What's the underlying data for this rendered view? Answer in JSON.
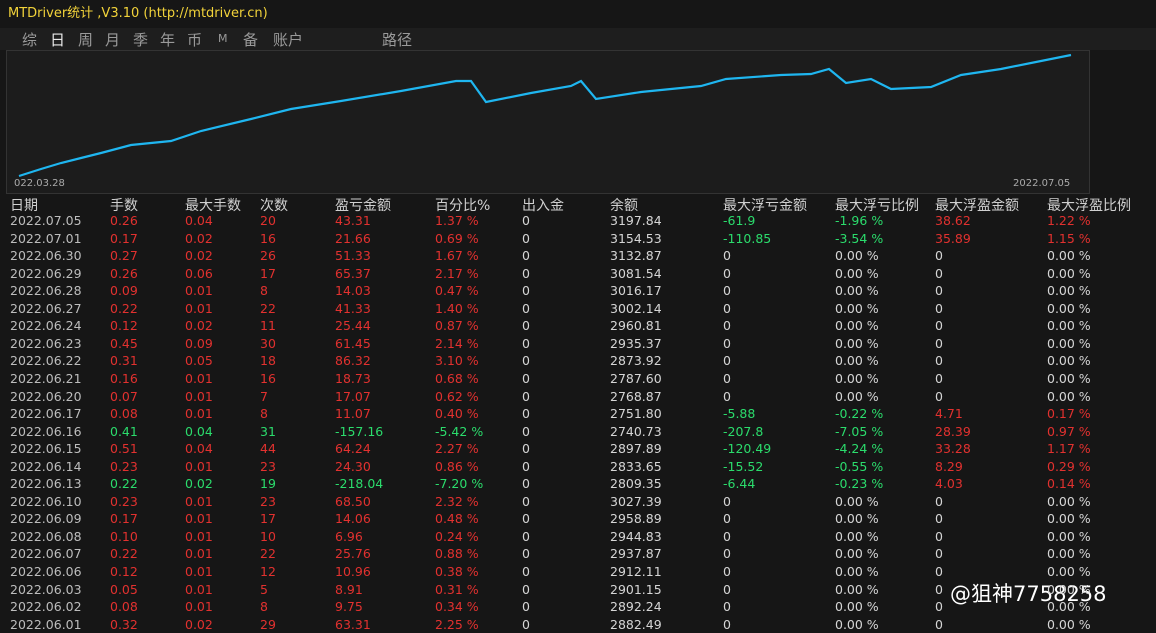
{
  "header": {
    "title": "MTDriver统计 ,V3.10 (http://mtdriver.cn)",
    "tabs": [
      "综",
      "日",
      "周",
      "月",
      "季",
      "年",
      "币",
      "M",
      "备",
      "账户",
      "路径"
    ]
  },
  "chart": {
    "start_label": "022.03.28",
    "end_label": "2022.07.05"
  },
  "table": {
    "columns": [
      "日期",
      "手数",
      "最大手数",
      "次数",
      "盈亏金额",
      "百分比%",
      "出入金",
      "余额",
      "最大浮亏金额",
      "最大浮亏比例",
      "最大浮盈金额",
      "最大浮盈比例"
    ],
    "rows": [
      [
        "2022.07.05",
        "0.26",
        "0.04",
        "20",
        "43.31",
        "1.37 %",
        "0",
        "3197.84",
        "-61.9",
        "-1.96 %",
        "38.62",
        "1.22 %"
      ],
      [
        "2022.07.01",
        "0.17",
        "0.02",
        "16",
        "21.66",
        "0.69 %",
        "0",
        "3154.53",
        "-110.85",
        "-3.54 %",
        "35.89",
        "1.15 %"
      ],
      [
        "2022.06.30",
        "0.27",
        "0.02",
        "26",
        "51.33",
        "1.67 %",
        "0",
        "3132.87",
        "0",
        "0.00 %",
        "0",
        "0.00 %"
      ],
      [
        "2022.06.29",
        "0.26",
        "0.06",
        "17",
        "65.37",
        "2.17 %",
        "0",
        "3081.54",
        "0",
        "0.00 %",
        "0",
        "0.00 %"
      ],
      [
        "2022.06.28",
        "0.09",
        "0.01",
        "8",
        "14.03",
        "0.47 %",
        "0",
        "3016.17",
        "0",
        "0.00 %",
        "0",
        "0.00 %"
      ],
      [
        "2022.06.27",
        "0.22",
        "0.01",
        "22",
        "41.33",
        "1.40 %",
        "0",
        "3002.14",
        "0",
        "0.00 %",
        "0",
        "0.00 %"
      ],
      [
        "2022.06.24",
        "0.12",
        "0.02",
        "11",
        "25.44",
        "0.87 %",
        "0",
        "2960.81",
        "0",
        "0.00 %",
        "0",
        "0.00 %"
      ],
      [
        "2022.06.23",
        "0.45",
        "0.09",
        "30",
        "61.45",
        "2.14 %",
        "0",
        "2935.37",
        "0",
        "0.00 %",
        "0",
        "0.00 %"
      ],
      [
        "2022.06.22",
        "0.31",
        "0.05",
        "18",
        "86.32",
        "3.10 %",
        "0",
        "2873.92",
        "0",
        "0.00 %",
        "0",
        "0.00 %"
      ],
      [
        "2022.06.21",
        "0.16",
        "0.01",
        "16",
        "18.73",
        "0.68 %",
        "0",
        "2787.60",
        "0",
        "0.00 %",
        "0",
        "0.00 %"
      ],
      [
        "2022.06.20",
        "0.07",
        "0.01",
        "7",
        "17.07",
        "0.62 %",
        "0",
        "2768.87",
        "0",
        "0.00 %",
        "0",
        "0.00 %"
      ],
      [
        "2022.06.17",
        "0.08",
        "0.01",
        "8",
        "11.07",
        "0.40 %",
        "0",
        "2751.80",
        "-5.88",
        "-0.22 %",
        "4.71",
        "0.17 %"
      ],
      [
        "2022.06.16",
        "0.41",
        "0.04",
        "31",
        "-157.16",
        "-5.42 %",
        "0",
        "2740.73",
        "-207.8",
        "-7.05 %",
        "28.39",
        "0.97 %"
      ],
      [
        "2022.06.15",
        "0.51",
        "0.04",
        "44",
        "64.24",
        "2.27 %",
        "0",
        "2897.89",
        "-120.49",
        "-4.24 %",
        "33.28",
        "1.17 %"
      ],
      [
        "2022.06.14",
        "0.23",
        "0.01",
        "23",
        "24.30",
        "0.86 %",
        "0",
        "2833.65",
        "-15.52",
        "-0.55 %",
        "8.29",
        "0.29 %"
      ],
      [
        "2022.06.13",
        "0.22",
        "0.02",
        "19",
        "-218.04",
        "-7.20 %",
        "0",
        "2809.35",
        "-6.44",
        "-0.23 %",
        "4.03",
        "0.14 %"
      ],
      [
        "2022.06.10",
        "0.23",
        "0.01",
        "23",
        "68.50",
        "2.32 %",
        "0",
        "3027.39",
        "0",
        "0.00 %",
        "0",
        "0.00 %"
      ],
      [
        "2022.06.09",
        "0.17",
        "0.01",
        "17",
        "14.06",
        "0.48 %",
        "0",
        "2958.89",
        "0",
        "0.00 %",
        "0",
        "0.00 %"
      ],
      [
        "2022.06.08",
        "0.10",
        "0.01",
        "10",
        "6.96",
        "0.24 %",
        "0",
        "2944.83",
        "0",
        "0.00 %",
        "0",
        "0.00 %"
      ],
      [
        "2022.06.07",
        "0.22",
        "0.01",
        "22",
        "25.76",
        "0.88 %",
        "0",
        "2937.87",
        "0",
        "0.00 %",
        "0",
        "0.00 %"
      ],
      [
        "2022.06.06",
        "0.12",
        "0.01",
        "12",
        "10.96",
        "0.38 %",
        "0",
        "2912.11",
        "0",
        "0.00 %",
        "0",
        "0.00 %"
      ],
      [
        "2022.06.03",
        "0.05",
        "0.01",
        "5",
        "8.91",
        "0.31 %",
        "0",
        "2901.15",
        "0",
        "0.00 %",
        "0",
        "0.00 %"
      ],
      [
        "2022.06.02",
        "0.08",
        "0.01",
        "8",
        "9.75",
        "0.34 %",
        "0",
        "2892.24",
        "0",
        "0.00 %",
        "0",
        "0.00 %"
      ],
      [
        "2022.06.01",
        "0.32",
        "0.02",
        "29",
        "63.31",
        "2.25 %",
        "0",
        "2882.49",
        "0",
        "0.00 %",
        "0",
        "0.00 %"
      ]
    ]
  },
  "watermark": "@狙神7758258"
}
